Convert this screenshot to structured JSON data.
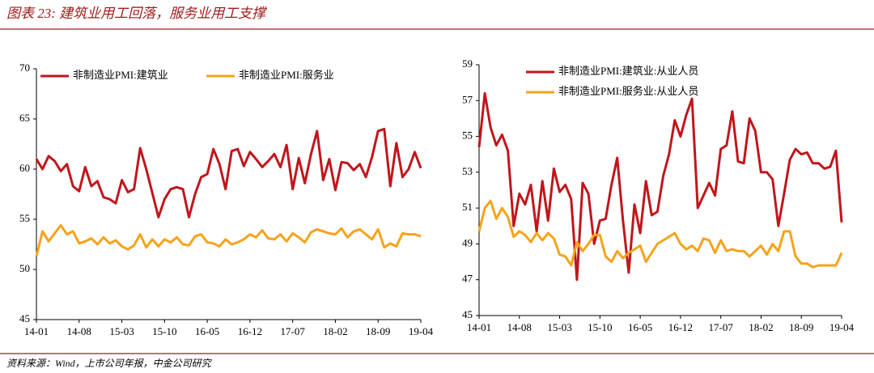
{
  "header": {
    "title": "图表 23: 建筑业用工回落，服务业用工支撑"
  },
  "source": "资料来源：Wind，上市公司年报，中金公司研究",
  "chart_data": [
    {
      "type": "line",
      "categories": [
        "14-01",
        null,
        null,
        null,
        null,
        null,
        null,
        "14-08",
        null,
        null,
        null,
        null,
        null,
        null,
        "15-03",
        null,
        null,
        null,
        null,
        null,
        null,
        "15-10",
        null,
        null,
        null,
        null,
        null,
        null,
        "16-05",
        null,
        null,
        null,
        null,
        null,
        null,
        "16-12",
        null,
        null,
        null,
        null,
        null,
        null,
        "17-07",
        null,
        null,
        null,
        null,
        null,
        null,
        "18-02",
        null,
        null,
        null,
        null,
        null,
        null,
        "18-09",
        null,
        null,
        null,
        null,
        null,
        null,
        "19-04"
      ],
      "ylim": [
        45,
        70
      ],
      "yticks": [
        45,
        50,
        55,
        60,
        65,
        70
      ],
      "legend": "top",
      "series": [
        {
          "name": "非制造业PMI:建筑业",
          "color": "#c0161c",
          "values": [
            61.0,
            60.0,
            61.3,
            60.8,
            59.8,
            60.5,
            58.3,
            57.8,
            60.2,
            58.3,
            58.8,
            57.2,
            57.0,
            56.6,
            58.9,
            57.7,
            58.0,
            62.1,
            60.0,
            57.6,
            55.2,
            57.0,
            58.0,
            58.2,
            58.0,
            55.2,
            57.5,
            59.2,
            59.5,
            62.0,
            60.5,
            58.0,
            61.8,
            62.0,
            60.3,
            61.7,
            61.0,
            60.2,
            60.8,
            61.5,
            60.2,
            62.4,
            58.0,
            61.1,
            58.6,
            61.5,
            63.8,
            58.9,
            61.0,
            57.9,
            60.7,
            60.6,
            59.9,
            60.5,
            59.2,
            61.2,
            63.8,
            64.0,
            58.3,
            62.6,
            59.2,
            60.0,
            61.7,
            60.1
          ]
        },
        {
          "name": "非制造业PMI:服务业",
          "color": "#f5a31a",
          "values": [
            51.3,
            53.8,
            52.8,
            53.6,
            54.4,
            53.5,
            53.8,
            52.6,
            52.8,
            53.1,
            52.5,
            53.2,
            52.6,
            52.9,
            52.3,
            52.0,
            52.4,
            53.5,
            52.2,
            53.0,
            52.3,
            53.0,
            52.7,
            53.2,
            52.5,
            52.4,
            53.3,
            53.5,
            52.7,
            52.6,
            52.3,
            53.0,
            52.5,
            52.7,
            53.0,
            53.5,
            53.2,
            53.9,
            53.1,
            53.0,
            53.5,
            52.8,
            53.6,
            53.2,
            52.7,
            53.7,
            54.0,
            53.8,
            53.6,
            53.5,
            54.1,
            53.2,
            53.8,
            54.0,
            53.5,
            53.0,
            54.0,
            52.2,
            52.6,
            52.3,
            53.6,
            53.5,
            53.5,
            53.3
          ]
        }
      ]
    },
    {
      "type": "line",
      "categories": [
        "14-01",
        null,
        null,
        null,
        null,
        null,
        null,
        "14-08",
        null,
        null,
        null,
        null,
        null,
        null,
        "15-03",
        null,
        null,
        null,
        null,
        null,
        null,
        "15-10",
        null,
        null,
        null,
        null,
        null,
        null,
        "16-05",
        null,
        null,
        null,
        null,
        null,
        null,
        "16-12",
        null,
        null,
        null,
        null,
        null,
        null,
        "17-07",
        null,
        null,
        null,
        null,
        null,
        null,
        "18-02",
        null,
        null,
        null,
        null,
        null,
        null,
        "18-09",
        null,
        null,
        null,
        null,
        null,
        null,
        "19-04"
      ],
      "ylim": [
        45,
        59
      ],
      "yticks": [
        45,
        47,
        49,
        51,
        53,
        55,
        57,
        59
      ],
      "legend": "top",
      "series": [
        {
          "name": "非制造业PMI:建筑业:从业人员",
          "color": "#c0161c",
          "values": [
            54.4,
            57.4,
            55.5,
            54.5,
            55.1,
            54.2,
            50.0,
            51.8,
            51.2,
            52.3,
            49.7,
            52.5,
            50.3,
            53.2,
            51.9,
            52.3,
            51.5,
            47.0,
            52.4,
            51.8,
            49.0,
            50.3,
            50.4,
            52.3,
            53.8,
            50.3,
            47.4,
            51.2,
            49.6,
            52.5,
            50.6,
            50.8,
            52.8,
            54.0,
            55.9,
            55.0,
            56.2,
            57.1,
            51.0,
            51.7,
            52.4,
            51.7,
            54.3,
            54.5,
            56.4,
            53.6,
            53.5,
            56.0,
            55.3,
            53.0,
            53.0,
            52.6,
            50.0,
            51.8,
            53.7,
            54.3,
            54.0,
            54.1,
            53.5,
            53.5,
            53.2,
            53.3,
            54.2,
            50.2
          ]
        },
        {
          "name": "非制造业PMI:服务业:从业人员",
          "color": "#f5a31a",
          "values": [
            49.7,
            51.0,
            51.4,
            50.4,
            51.0,
            50.5,
            49.4,
            49.7,
            49.5,
            49.1,
            49.6,
            49.2,
            49.6,
            49.3,
            48.4,
            48.3,
            47.8,
            49.1,
            48.6,
            49.0,
            49.5,
            49.5,
            48.3,
            48.0,
            48.6,
            48.2,
            48.5,
            48.7,
            48.9,
            48.0,
            48.5,
            49.0,
            49.2,
            49.4,
            49.6,
            49.0,
            48.7,
            48.9,
            48.6,
            49.3,
            49.2,
            48.5,
            49.2,
            48.6,
            48.7,
            48.6,
            48.6,
            48.3,
            48.6,
            48.9,
            48.4,
            49.0,
            48.6,
            49.7,
            49.7,
            48.3,
            47.9,
            47.9,
            47.7,
            47.8,
            47.8,
            47.8,
            47.8,
            48.5
          ]
        }
      ]
    }
  ]
}
